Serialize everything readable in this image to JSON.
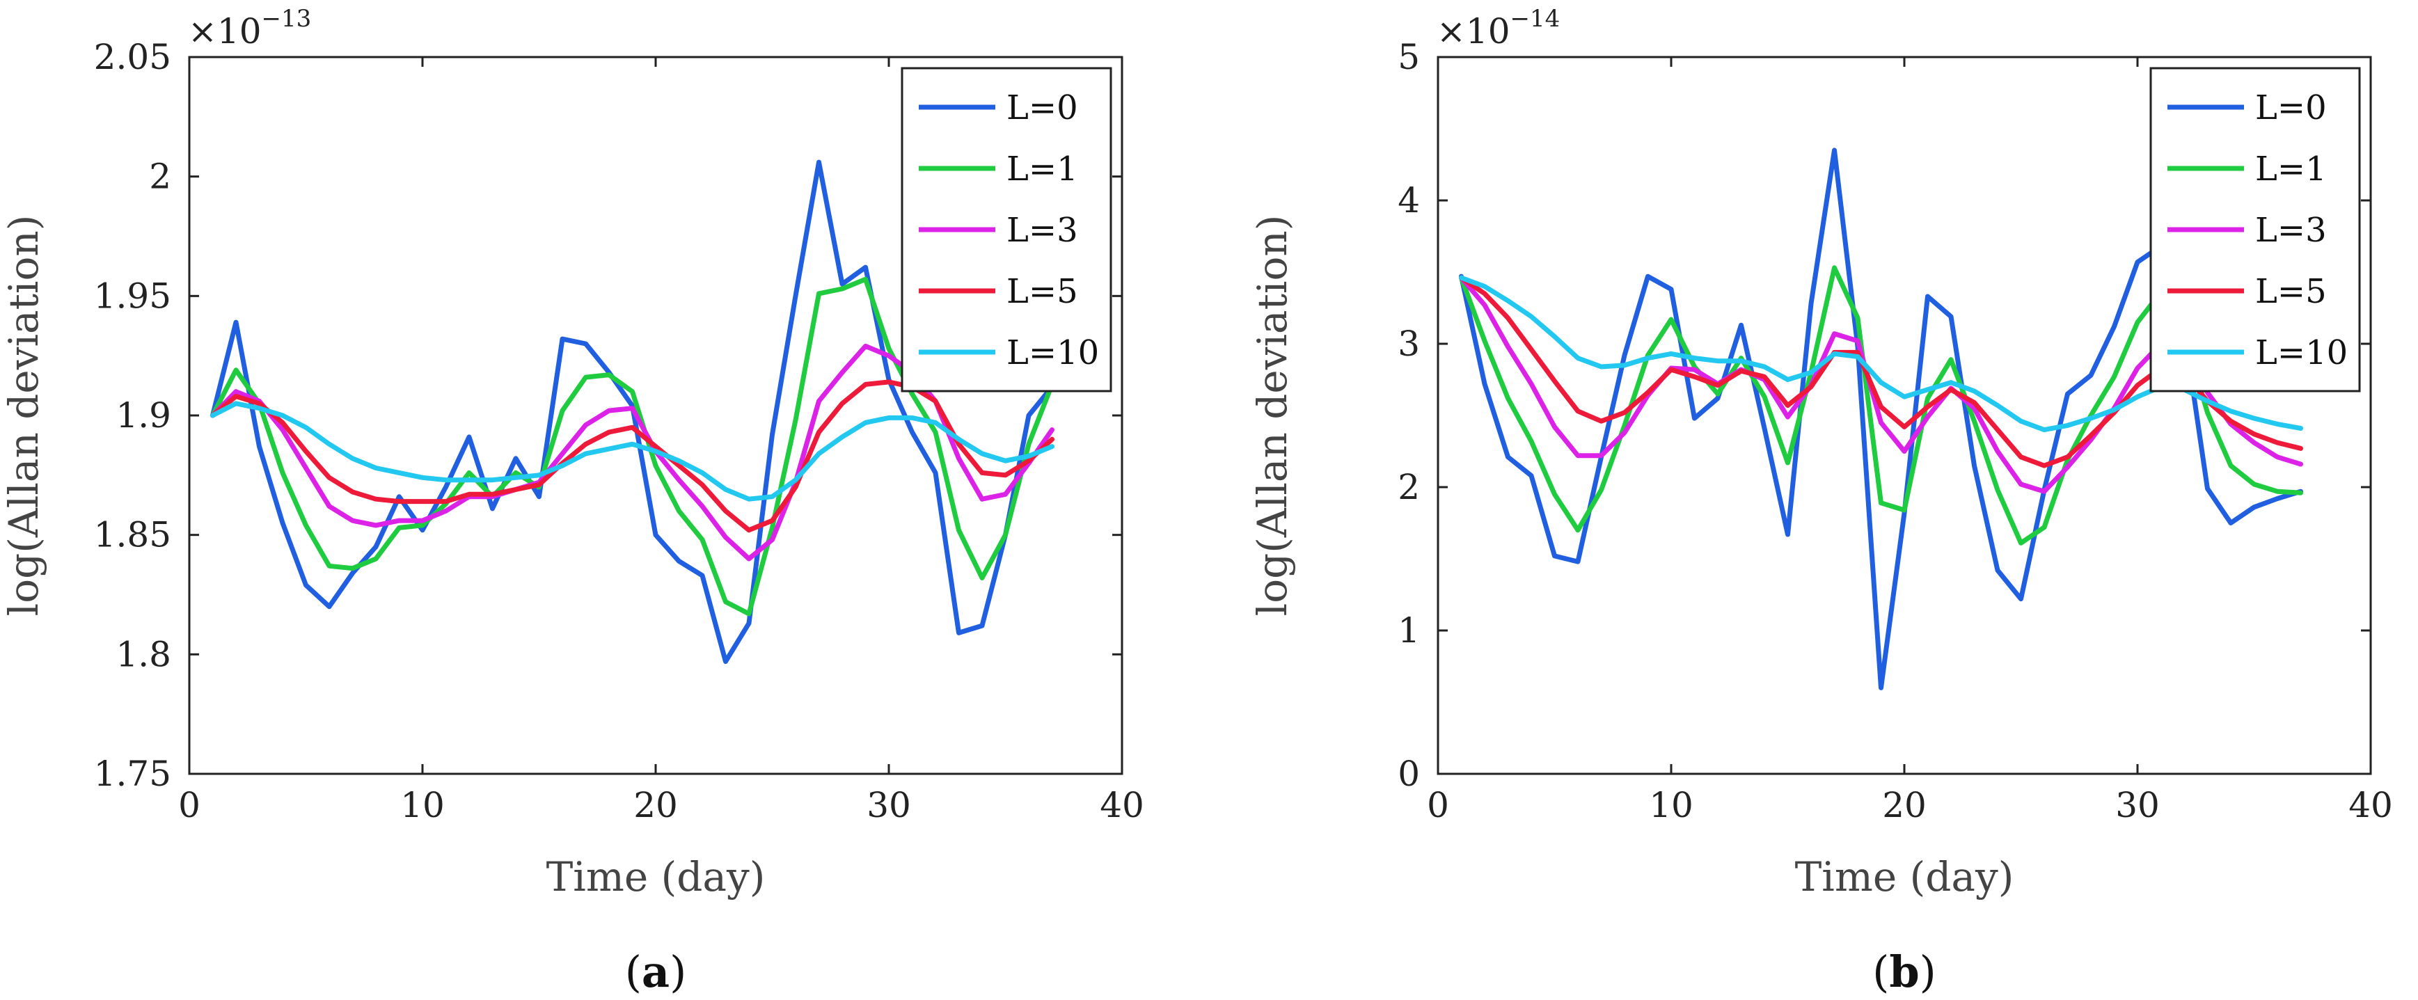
{
  "chart_data": [
    {
      "type": "line",
      "panel": "a",
      "panel_label": "a",
      "xlabel": "Time (day)",
      "ylabel": "log(Allan deviation)",
      "y_multiplier": "×10",
      "y_exponent": "−13",
      "xlim": [
        0,
        40
      ],
      "ylim": [
        1.75,
        2.05
      ],
      "xticks": [
        0,
        10,
        20,
        30,
        40
      ],
      "xtick_labels": [
        "0",
        "10",
        "20",
        "30",
        "40"
      ],
      "yticks": [
        1.75,
        1.8,
        1.85,
        1.9,
        1.95,
        2.0,
        2.05
      ],
      "ytick_labels": [
        "1.75",
        "1.8",
        "1.85",
        "1.9",
        "1.95",
        "2",
        "2.05"
      ],
      "legend_position": "top-right",
      "x": [
        1,
        2,
        3,
        4,
        5,
        6,
        7,
        8,
        9,
        10,
        11,
        12,
        13,
        14,
        15,
        16,
        17,
        18,
        19,
        20,
        21,
        22,
        23,
        24,
        25,
        26,
        27,
        28,
        29,
        30,
        31,
        32,
        33,
        34,
        35,
        36,
        37
      ],
      "series": [
        {
          "name": "L=0",
          "color": "#1f5fe0",
          "values": [
            1.9,
            1.939,
            1.887,
            1.855,
            1.829,
            1.82,
            1.834,
            1.845,
            1.866,
            1.852,
            1.87,
            1.891,
            1.861,
            1.882,
            1.866,
            1.932,
            1.93,
            1.918,
            1.904,
            1.85,
            1.839,
            1.833,
            1.797,
            1.813,
            1.892,
            1.95,
            2.006,
            1.955,
            1.962,
            1.915,
            1.893,
            1.876,
            1.809,
            1.812,
            1.85,
            1.9,
            1.912
          ]
        },
        {
          "name": "L=1",
          "color": "#1fcc3f",
          "values": [
            1.9,
            1.919,
            1.905,
            1.876,
            1.854,
            1.837,
            1.836,
            1.84,
            1.853,
            1.854,
            1.863,
            1.876,
            1.866,
            1.876,
            1.87,
            1.902,
            1.916,
            1.917,
            1.91,
            1.879,
            1.86,
            1.848,
            1.822,
            1.817,
            1.853,
            1.898,
            1.951,
            1.953,
            1.957,
            1.928,
            1.909,
            1.893,
            1.852,
            1.832,
            1.85,
            1.888,
            1.913
          ]
        },
        {
          "name": "L=3",
          "color": "#dd22e8",
          "values": [
            1.9,
            1.91,
            1.906,
            1.894,
            1.878,
            1.862,
            1.856,
            1.854,
            1.856,
            1.856,
            1.86,
            1.866,
            1.866,
            1.869,
            1.872,
            1.884,
            1.896,
            1.902,
            1.903,
            1.885,
            1.873,
            1.862,
            1.849,
            1.84,
            1.848,
            1.872,
            1.906,
            1.918,
            1.929,
            1.925,
            1.918,
            1.906,
            1.882,
            1.865,
            1.867,
            1.88,
            1.894
          ]
        },
        {
          "name": "L=5",
          "color": "#ee1a3a",
          "values": [
            1.9,
            1.908,
            1.905,
            1.897,
            1.885,
            1.874,
            1.868,
            1.865,
            1.864,
            1.864,
            1.864,
            1.867,
            1.867,
            1.869,
            1.871,
            1.88,
            1.888,
            1.893,
            1.895,
            1.887,
            1.879,
            1.871,
            1.86,
            1.852,
            1.856,
            1.87,
            1.893,
            1.905,
            1.913,
            1.914,
            1.912,
            1.906,
            1.888,
            1.876,
            1.875,
            1.881,
            1.89
          ]
        },
        {
          "name": "L=10",
          "color": "#22c8f0",
          "values": [
            1.9,
            1.905,
            1.903,
            1.9,
            1.895,
            1.888,
            1.882,
            1.878,
            1.876,
            1.874,
            1.873,
            1.873,
            1.873,
            1.874,
            1.875,
            1.879,
            1.884,
            1.886,
            1.888,
            1.885,
            1.881,
            1.876,
            1.869,
            1.865,
            1.866,
            1.873,
            1.884,
            1.891,
            1.897,
            1.899,
            1.899,
            1.897,
            1.89,
            1.884,
            1.881,
            1.883,
            1.887
          ]
        }
      ]
    },
    {
      "type": "line",
      "panel": "b",
      "panel_label": "b",
      "xlabel": "Time (day)",
      "ylabel": "log(Allan deviation)",
      "y_multiplier": "×10",
      "y_exponent": "−14",
      "xlim": [
        0,
        40
      ],
      "ylim": [
        0,
        5
      ],
      "xticks": [
        0,
        10,
        20,
        30,
        40
      ],
      "xtick_labels": [
        "0",
        "10",
        "20",
        "30",
        "40"
      ],
      "yticks": [
        0,
        1,
        2,
        3,
        4,
        5
      ],
      "ytick_labels": [
        "0",
        "1",
        "2",
        "3",
        "4",
        "5"
      ],
      "legend_position": "top-right",
      "x": [
        1,
        2,
        3,
        4,
        5,
        6,
        7,
        8,
        9,
        10,
        11,
        12,
        13,
        14,
        15,
        16,
        17,
        18,
        19,
        20,
        21,
        22,
        23,
        24,
        25,
        26,
        27,
        28,
        29,
        30,
        31,
        32,
        33,
        34,
        35,
        36,
        37
      ],
      "series": [
        {
          "name": "L=0",
          "color": "#1f5fe0",
          "values": [
            3.47,
            2.72,
            2.21,
            2.08,
            1.52,
            1.48,
            2.21,
            2.92,
            3.47,
            3.38,
            2.48,
            2.62,
            3.13,
            2.41,
            1.67,
            3.28,
            4.35,
            2.98,
            0.6,
            1.82,
            3.33,
            3.19,
            2.15,
            1.42,
            1.22,
            1.98,
            2.65,
            2.78,
            3.12,
            3.57,
            3.68,
            3.1,
            1.99,
            1.75,
            1.86,
            1.92,
            1.97
          ]
        },
        {
          "name": "L=1",
          "color": "#1fcc3f",
          "values": [
            3.46,
            3.02,
            2.62,
            2.32,
            1.95,
            1.7,
            1.98,
            2.43,
            2.92,
            3.17,
            2.84,
            2.65,
            2.9,
            2.63,
            2.17,
            2.8,
            3.53,
            3.18,
            1.89,
            1.84,
            2.62,
            2.89,
            2.46,
            1.98,
            1.61,
            1.72,
            2.19,
            2.5,
            2.77,
            3.15,
            3.36,
            3.08,
            2.52,
            2.15,
            2.02,
            1.97,
            1.96
          ]
        },
        {
          "name": "L=3",
          "color": "#dd22e8",
          "values": [
            3.46,
            3.27,
            2.98,
            2.72,
            2.42,
            2.22,
            2.22,
            2.38,
            2.64,
            2.83,
            2.82,
            2.72,
            2.82,
            2.75,
            2.49,
            2.71,
            3.07,
            3.02,
            2.45,
            2.25,
            2.49,
            2.69,
            2.55,
            2.25,
            2.02,
            1.97,
            2.14,
            2.33,
            2.55,
            2.83,
            3.0,
            2.94,
            2.66,
            2.44,
            2.31,
            2.21,
            2.16
          ]
        },
        {
          "name": "L=5",
          "color": "#ee1a3a",
          "values": [
            3.46,
            3.35,
            3.18,
            2.96,
            2.74,
            2.53,
            2.46,
            2.52,
            2.66,
            2.82,
            2.77,
            2.71,
            2.81,
            2.77,
            2.57,
            2.7,
            2.94,
            2.94,
            2.56,
            2.42,
            2.56,
            2.68,
            2.59,
            2.4,
            2.21,
            2.15,
            2.21,
            2.36,
            2.52,
            2.71,
            2.83,
            2.79,
            2.6,
            2.46,
            2.37,
            2.31,
            2.27
          ]
        },
        {
          "name": "L=10",
          "color": "#22c8f0",
          "values": [
            3.46,
            3.4,
            3.3,
            3.19,
            3.05,
            2.9,
            2.84,
            2.85,
            2.9,
            2.93,
            2.9,
            2.88,
            2.88,
            2.84,
            2.75,
            2.8,
            2.93,
            2.91,
            2.73,
            2.63,
            2.68,
            2.73,
            2.67,
            2.57,
            2.46,
            2.4,
            2.43,
            2.48,
            2.54,
            2.63,
            2.7,
            2.68,
            2.6,
            2.53,
            2.48,
            2.44,
            2.41
          ]
        }
      ]
    }
  ]
}
